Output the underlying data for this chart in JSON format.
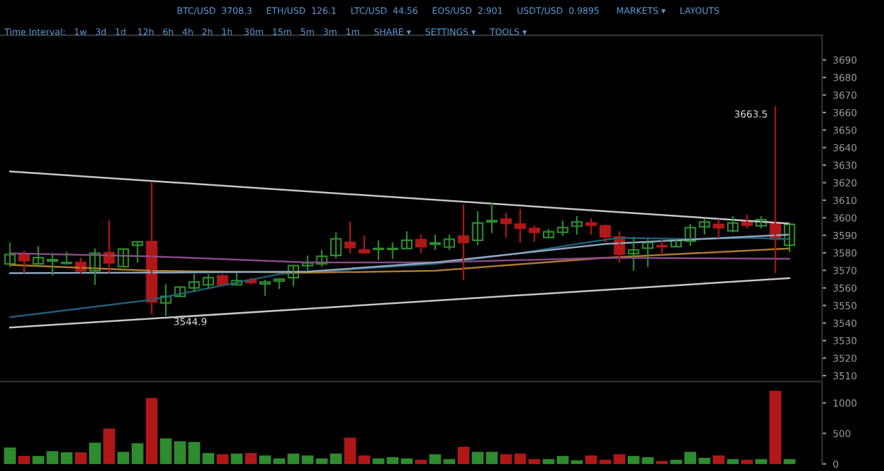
{
  "chart_data": [
    {
      "type": "candlestick",
      "categories": [
        null,
        null,
        null,
        null,
        null,
        null,
        null,
        null,
        null,
        null,
        null,
        null,
        null,
        null,
        null,
        null,
        null,
        null,
        null,
        null,
        null,
        null,
        null,
        null,
        null,
        null,
        null,
        null,
        null,
        null,
        null,
        null,
        null,
        null,
        null,
        null,
        null,
        null,
        null,
        null,
        null,
        null,
        null,
        null,
        null,
        null,
        null,
        null,
        null,
        null,
        null,
        null,
        null,
        null,
        null,
        null
      ],
      "ohlc": [
        [
          3573.7,
          3585.9,
          3571.9,
          3579.0
        ],
        [
          3579.0,
          3581.2,
          3568.4,
          3575.6
        ],
        [
          3573.7,
          3583.8,
          3573.2,
          3577.2
        ],
        [
          3575.3,
          3579.8,
          3567.1,
          3576.1
        ],
        [
          3574.0,
          3580.6,
          3573.2,
          3574.5
        ],
        [
          3574.5,
          3577.2,
          3567.9,
          3569.8
        ],
        [
          3569.8,
          3582.5,
          3561.8,
          3579.8
        ],
        [
          3580.1,
          3598.4,
          3568.4,
          3574.3
        ],
        [
          3572.1,
          3582.2,
          3571.9,
          3582.2
        ],
        [
          3584.3,
          3586.4,
          3574.5,
          3586.3
        ],
        [
          3586.4,
          3620.3,
          3544.9,
          3552.0
        ],
        [
          3551.5,
          3562.1,
          3544.1,
          3555.2
        ],
        [
          3555.2,
          3560.5,
          3554.7,
          3560.5
        ],
        [
          3560.0,
          3567.9,
          3557.8,
          3563.4
        ],
        [
          3561.8,
          3567.9,
          3560.0,
          3565.8
        ],
        [
          3566.8,
          3567.9,
          3561.8,
          3561.8
        ],
        [
          3561.8,
          3568.7,
          3561.8,
          3564.2
        ],
        [
          3564.5,
          3565.8,
          3562.1,
          3563.1
        ],
        [
          3562.3,
          3564.7,
          3555.5,
          3563.4
        ],
        [
          3564.0,
          3565.5,
          3559.4,
          3565.0
        ],
        [
          3565.8,
          3572.7,
          3561.0,
          3572.7
        ],
        [
          3572.7,
          3578.5,
          3570.0,
          3574.3
        ],
        [
          3573.7,
          3581.7,
          3572.1,
          3578.0
        ],
        [
          3578.5,
          3591.7,
          3576.9,
          3588.0
        ],
        [
          3585.9,
          3597.8,
          3579.8,
          3583.0
        ],
        [
          3581.7,
          3589.9,
          3580.1,
          3580.1
        ],
        [
          3582.0,
          3587.0,
          3575.9,
          3582.5
        ],
        [
          3582.0,
          3585.9,
          3576.4,
          3582.5
        ],
        [
          3582.5,
          3592.3,
          3582.5,
          3587.2
        ],
        [
          3587.5,
          3590.4,
          3579.8,
          3583.5
        ],
        [
          3584.9,
          3590.4,
          3581.7,
          3585.7
        ],
        [
          3583.3,
          3590.4,
          3581.7,
          3587.8
        ],
        [
          3589.6,
          3607.6,
          3564.7,
          3585.9
        ],
        [
          3587.2,
          3603.7,
          3584.3,
          3597.0
        ],
        [
          3597.6,
          3608.4,
          3591.2,
          3598.4
        ],
        [
          3599.2,
          3602.9,
          3588.6,
          3596.8
        ],
        [
          3596.3,
          3605.0,
          3585.9,
          3594.1
        ],
        [
          3593.9,
          3595.7,
          3586.4,
          3591.7
        ],
        [
          3588.8,
          3593.6,
          3588.3,
          3592.0
        ],
        [
          3591.7,
          3598.4,
          3589.6,
          3594.4
        ],
        [
          3595.2,
          3601.0,
          3590.4,
          3597.6
        ],
        [
          3597.0,
          3599.7,
          3590.4,
          3595.7
        ],
        [
          3595.4,
          3596.2,
          3585.9,
          3589.1
        ],
        [
          3589.1,
          3592.3,
          3574.5,
          3579.3
        ],
        [
          3579.6,
          3589.1,
          3569.8,
          3581.7
        ],
        [
          3582.7,
          3587.8,
          3571.9,
          3585.9
        ],
        [
          3584.1,
          3587.0,
          3579.0,
          3583.5
        ],
        [
          3583.5,
          3588.0,
          3583.3,
          3587.0
        ],
        [
          3586.7,
          3596.5,
          3583.8,
          3594.4
        ],
        [
          3594.9,
          3599.7,
          3590.4,
          3597.6
        ],
        [
          3596.2,
          3599.2,
          3588.3,
          3594.4
        ],
        [
          3592.5,
          3601.0,
          3591.7,
          3597.0
        ],
        [
          3597.8,
          3601.8,
          3593.9,
          3595.7
        ],
        [
          3595.4,
          3601.0,
          3593.9,
          3598.9
        ],
        [
          3597.0,
          3663.5,
          3568.4,
          3587.8
        ],
        [
          3584.3,
          3597.0,
          3580.4,
          3596.2
        ]
      ],
      "colors": [
        "#2e8b2e",
        "#b01818",
        "#2e8b2e",
        "#2e8b2e",
        "#2e8b2e",
        "#b01818",
        "#2e8b2e",
        "#b01818",
        "#2e8b2e",
        "#2e8b2e",
        "#b01818",
        "#2e8b2e",
        "#2e8b2e",
        "#2e8b2e",
        "#2e8b2e",
        "#b01818",
        "#2e8b2e",
        "#b01818",
        "#2e8b2e",
        "#2e8b2e",
        "#2e8b2e",
        "#2e8b2e",
        "#2e8b2e",
        "#2e8b2e",
        "#b01818",
        "#b01818",
        "#2e8b2e",
        "#2e8b2e",
        "#2e8b2e",
        "#b01818",
        "#2e8b2e",
        "#2e8b2e",
        "#b01818",
        "#2e8b2e",
        "#2e8b2e",
        "#b01818",
        "#b01818",
        "#b01818",
        "#2e8b2e",
        "#2e8b2e",
        "#2e8b2e",
        "#b01818",
        "#b01818",
        "#b01818",
        "#2e8b2e",
        "#2e8b2e",
        "#b01818",
        "#2e8b2e",
        "#2e8b2e",
        "#2e8b2e",
        "#b01818",
        "#2e8b2e",
        "#b01818",
        "#2e8b2e",
        "#b01818",
        "#2e8b2e"
      ],
      "series": [
        {
          "type": "line",
          "color": "#c8c8c8",
          "values": [
            3626.4,
            null,
            null,
            null,
            null,
            null,
            null,
            null,
            null,
            null,
            null,
            null,
            null,
            null,
            null,
            null,
            null,
            null,
            null,
            null,
            null,
            null,
            null,
            null,
            null,
            null,
            null,
            null,
            null,
            null,
            null,
            null,
            null,
            null,
            null,
            null,
            null,
            null,
            null,
            null,
            null,
            null,
            null,
            null,
            null,
            null,
            null,
            null,
            null,
            null,
            null,
            null,
            null,
            null,
            null,
            3596.7
          ]
        },
        {
          "type": "line",
          "color": "#c8c8c8",
          "values": [
            3537.4,
            null,
            null,
            null,
            null,
            null,
            null,
            null,
            null,
            null,
            null,
            null,
            null,
            null,
            null,
            null,
            null,
            null,
            null,
            null,
            null,
            null,
            null,
            null,
            null,
            null,
            null,
            null,
            null,
            null,
            null,
            null,
            null,
            null,
            null,
            null,
            null,
            null,
            null,
            null,
            null,
            null,
            null,
            null,
            null,
            null,
            null,
            null,
            null,
            null,
            null,
            null,
            null,
            null,
            null,
            3565.6
          ]
        },
        {
          "type": "line",
          "color": "#1f5f7a",
          "values": [
            3543.3,
            null,
            null,
            null,
            null,
            null,
            null,
            null,
            null,
            null,
            3553.3,
            null,
            null,
            null,
            null,
            null,
            null,
            null,
            null,
            3567.9,
            null,
            null,
            null,
            null,
            null,
            null,
            null,
            null,
            null,
            null,
            3573.7,
            null,
            null,
            null,
            null,
            null,
            3579.8,
            null,
            null,
            null,
            3585.1,
            null,
            null,
            3588.6,
            null,
            null,
            null,
            null,
            3587.8,
            null,
            null,
            null,
            3588.6,
            null,
            null,
            3587.8
          ]
        },
        {
          "type": "line",
          "color": "#b07a30",
          "values": [
            3573.2,
            null,
            null,
            null,
            null,
            null,
            null,
            null,
            null,
            null,
            3569.8,
            null,
            null,
            null,
            null,
            null,
            null,
            null,
            null,
            null,
            null,
            3568.7,
            null,
            null,
            null,
            null,
            null,
            null,
            null,
            null,
            3569.8,
            null,
            null,
            null,
            null,
            null,
            null,
            null,
            null,
            null,
            null,
            null,
            3577.2,
            null,
            null,
            null,
            null,
            null,
            null,
            null,
            null,
            null,
            null,
            null,
            null,
            3582.5
          ]
        },
        {
          "type": "line",
          "color": "#8a4a8a",
          "values": [
            3579.8,
            null,
            null,
            null,
            null,
            null,
            null,
            null,
            null,
            null,
            3578.0,
            null,
            null,
            null,
            null,
            null,
            null,
            null,
            null,
            null,
            null,
            3574.5,
            null,
            null,
            null,
            null,
            null,
            null,
            null,
            null,
            3574.5,
            null,
            null,
            null,
            null,
            null,
            null,
            null,
            null,
            null,
            null,
            null,
            3577.2,
            null,
            null,
            null,
            null,
            null,
            null,
            null,
            null,
            null,
            null,
            null,
            null,
            3576.6
          ]
        },
        {
          "type": "line",
          "color": "#8fa8c0",
          "values": [
            3568.4,
            null,
            null,
            null,
            null,
            null,
            null,
            null,
            null,
            null,
            3568.7,
            null,
            null,
            null,
            null,
            null,
            null,
            null,
            null,
            null,
            null,
            3569.3,
            null,
            null,
            null,
            null,
            null,
            null,
            null,
            null,
            3574.5,
            null,
            null,
            null,
            null,
            null,
            null,
            null,
            null,
            null,
            null,
            null,
            3585.1,
            null,
            null,
            null,
            null,
            null,
            null,
            null,
            null,
            null,
            null,
            null,
            null,
            3590.4
          ]
        }
      ],
      "ylim": [
        3508,
        3704
      ],
      "yticks": [
        3510,
        3520,
        3530,
        3540,
        3550,
        3560,
        3570,
        3580,
        3590,
        3600,
        3610,
        3620,
        3630,
        3640,
        3650,
        3660,
        3670,
        3680,
        3690
      ],
      "tick_labels": "y",
      "grid": false,
      "legend": false,
      "annotations": [
        "BTC/USD  3708.3     ETH/USD  126.1     LTC/USD  44.56     EOS/USD  2.901     USDT/USD  0.9895      MARKETS ▾     LAYOUTS",
        "Time Interval:   1w   3d   1d    12h   6h   4h   2h   1h    30m   15m   5m   3m   1m     SHARE ▾     SETTINGS ▾     TOOLS ▾",
        "3663.5",
        "3544.9"
      ]
    },
    {
      "type": "bar",
      "categories": [
        null,
        null,
        null,
        null,
        null,
        null,
        null,
        null,
        null,
        null,
        null,
        null,
        null,
        null,
        null,
        null,
        null,
        null,
        null,
        null,
        null,
        null,
        null,
        null,
        null,
        null,
        null,
        null,
        null,
        null,
        null,
        null,
        null,
        null,
        null,
        null,
        null,
        null,
        null,
        null,
        null,
        null,
        null,
        null,
        null,
        null,
        null,
        null,
        null,
        null,
        null,
        null,
        null,
        null,
        null,
        null
      ],
      "values": [
        260,
        120,
        120,
        200,
        180,
        180,
        340,
        570,
        190,
        330,
        1070,
        410,
        360,
        350,
        170,
        150,
        160,
        170,
        130,
        80,
        160,
        130,
        80,
        160,
        420,
        130,
        80,
        100,
        80,
        60,
        150,
        70,
        270,
        190,
        190,
        150,
        160,
        70,
        70,
        120,
        50,
        130,
        60,
        150,
        120,
        100,
        40,
        60,
        190,
        90,
        130,
        70,
        60,
        70,
        1190,
        70
      ],
      "colors": [
        "#2e8b2e",
        "#b01818",
        "#2e8b2e",
        "#2e8b2e",
        "#2e8b2e",
        "#b01818",
        "#2e8b2e",
        "#b01818",
        "#2e8b2e",
        "#2e8b2e",
        "#b01818",
        "#2e8b2e",
        "#2e8b2e",
        "#2e8b2e",
        "#2e8b2e",
        "#b01818",
        "#2e8b2e",
        "#b01818",
        "#2e8b2e",
        "#2e8b2e",
        "#2e8b2e",
        "#2e8b2e",
        "#2e8b2e",
        "#2e8b2e",
        "#b01818",
        "#b01818",
        "#2e8b2e",
        "#2e8b2e",
        "#2e8b2e",
        "#b01818",
        "#2e8b2e",
        "#2e8b2e",
        "#b01818",
        "#2e8b2e",
        "#2e8b2e",
        "#b01818",
        "#b01818",
        "#b01818",
        "#2e8b2e",
        "#2e8b2e",
        "#2e8b2e",
        "#b01818",
        "#b01818",
        "#b01818",
        "#2e8b2e",
        "#2e8b2e",
        "#b01818",
        "#2e8b2e",
        "#2e8b2e",
        "#2e8b2e",
        "#b01818",
        "#2e8b2e",
        "#b01818",
        "#2e8b2e",
        "#b01818",
        "#2e8b2e"
      ],
      "ylim": [
        0,
        1350
      ],
      "yticks": [
        0,
        500,
        1000
      ],
      "tick_labels": "y",
      "grid": false,
      "legend": false
    }
  ]
}
